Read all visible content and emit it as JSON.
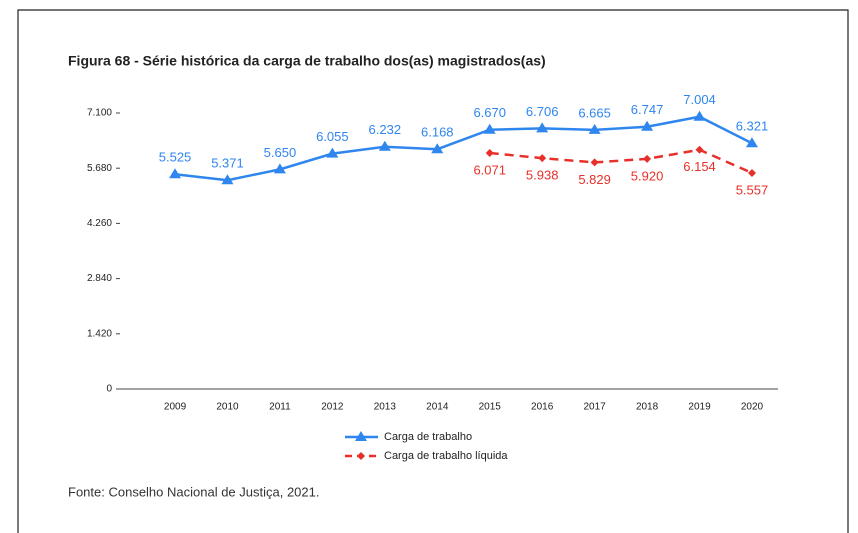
{
  "chart_data": {
    "type": "line",
    "title": "Figura 68 - Série histórica da carga de trabalho dos(as) magistrados(as)",
    "source": "Fonte: Conselho Nacional de Justiça, 2021.",
    "categories": [
      "2009",
      "2010",
      "2011",
      "2012",
      "2013",
      "2014",
      "2015",
      "2016",
      "2017",
      "2018",
      "2019",
      "2020"
    ],
    "series": [
      {
        "name": "Carga de trabalho",
        "color": "#2f86ee",
        "style": "solid",
        "marker": "triangle",
        "label_position": "above",
        "values": [
          5525,
          5371,
          5650,
          6055,
          6232,
          6168,
          6670,
          6706,
          6665,
          6747,
          7004,
          6321
        ],
        "value_labels": [
          "5.525",
          "5.371",
          "5.650",
          "6.055",
          "6.232",
          "6.168",
          "6.670",
          "6.706",
          "6.665",
          "6.747",
          "7.004",
          "6.321"
        ]
      },
      {
        "name": "Carga de trabalho líquida",
        "color": "#e8302a",
        "style": "dashed",
        "marker": "diamond",
        "label_position": "below",
        "values": [
          null,
          null,
          null,
          null,
          null,
          null,
          6071,
          5938,
          5829,
          5920,
          6154,
          5557
        ],
        "value_labels": [
          null,
          null,
          null,
          null,
          null,
          null,
          "6.071",
          "5.938",
          "5.829",
          "5.920",
          "6.154",
          "5.557"
        ]
      }
    ],
    "ylim": [
      0,
      7100
    ],
    "yticks": [
      0,
      {
        "value": 1420,
        "label": "1.420"
      },
      {
        "value": 2840,
        "label": "2.840"
      },
      {
        "value": 4260,
        "label": "4.260"
      },
      {
        "value": 5680,
        "label": "5.680"
      },
      {
        "value": 7100,
        "label": "7.100"
      }
    ],
    "grid": false,
    "legend": "bottom"
  }
}
